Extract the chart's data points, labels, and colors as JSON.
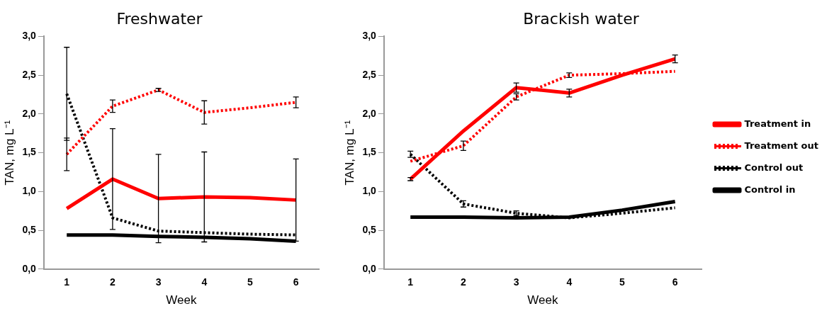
{
  "chart_data": [
    {
      "type": "line",
      "title": "Freshwater",
      "xlabel": "Week",
      "ylabel": "TAN, mg L⁻¹",
      "categories": [
        "1",
        "2",
        "3",
        "4",
        "5",
        "6"
      ],
      "ylim": [
        0,
        3
      ],
      "yticks": [
        {
          "value": 0,
          "label": "0,0"
        },
        {
          "value": 0.5,
          "label": "0,5"
        },
        {
          "value": 1,
          "label": "1,0"
        },
        {
          "value": 1.5,
          "label": "1,5"
        },
        {
          "value": 2,
          "label": "2,0"
        },
        {
          "value": 2.5,
          "label": "2,5"
        },
        {
          "value": 3,
          "label": "3,0"
        }
      ],
      "grid": false,
      "legend": false,
      "series": [
        {
          "color": "#ff0000",
          "line_style": "solid",
          "values": [
            0.78,
            1.16,
            0.91,
            0.93,
            0.92,
            0.89
          ],
          "errors": [
            null,
            0.65,
            0.57,
            0.58,
            null,
            0.53
          ]
        },
        {
          "color": "#ff0000",
          "line_style": "dotted",
          "values": [
            1.48,
            2.1,
            2.31,
            2.02,
            2.08,
            2.15
          ],
          "errors": [
            0.21,
            0.08,
            0.02,
            0.15,
            null,
            0.07
          ]
        },
        {
          "color": "#000000",
          "line_style": "dotted",
          "values": [
            2.26,
            0.66,
            0.49,
            0.47,
            0.45,
            0.44
          ],
          "errors": [
            0.6,
            null,
            null,
            null,
            null,
            null
          ]
        },
        {
          "color": "#000000",
          "line_style": "solid",
          "values": [
            0.44,
            0.44,
            0.42,
            0.41,
            0.39,
            0.36
          ]
        }
      ]
    },
    {
      "type": "line",
      "title": "Brackish water",
      "xlabel": "Week",
      "ylabel": "TAN, mg L⁻¹",
      "categories": [
        "1",
        "2",
        "3",
        "4",
        "5",
        "6"
      ],
      "ylim": [
        0,
        3
      ],
      "yticks": [
        {
          "value": 0,
          "label": "0,0"
        },
        {
          "value": 0.5,
          "label": "0,5"
        },
        {
          "value": 1,
          "label": "1,0"
        },
        {
          "value": 1.5,
          "label": "1,5"
        },
        {
          "value": 2,
          "label": "2,0"
        },
        {
          "value": 2.5,
          "label": "2,5"
        },
        {
          "value": 3,
          "label": "3,0"
        }
      ],
      "grid": false,
      "legend": "right",
      "series": [
        {
          "name": "Treatment in",
          "color": "#ff0000",
          "line_style": "solid",
          "values": [
            1.16,
            1.78,
            2.34,
            2.27,
            2.5,
            2.71
          ],
          "errors": [
            0.02,
            null,
            0.06,
            0.05,
            null,
            0.05
          ]
        },
        {
          "name": "Treatment out",
          "color": "#ff0000",
          "line_style": "dotted",
          "values": [
            1.39,
            1.59,
            2.22,
            2.5,
            2.52,
            2.55
          ],
          "errors": [
            null,
            0.06,
            0.04,
            0.03,
            null,
            null
          ]
        },
        {
          "name": "Control out",
          "color": "#000000",
          "line_style": "dotted",
          "values": [
            1.48,
            0.84,
            0.72,
            0.66,
            0.72,
            0.79
          ],
          "errors": [
            0.04,
            0.04,
            0.03,
            null,
            null,
            null
          ]
        },
        {
          "name": "Control in",
          "color": "#000000",
          "line_style": "solid",
          "values": [
            0.67,
            0.67,
            0.66,
            0.67,
            0.76,
            0.87
          ]
        }
      ]
    }
  ]
}
